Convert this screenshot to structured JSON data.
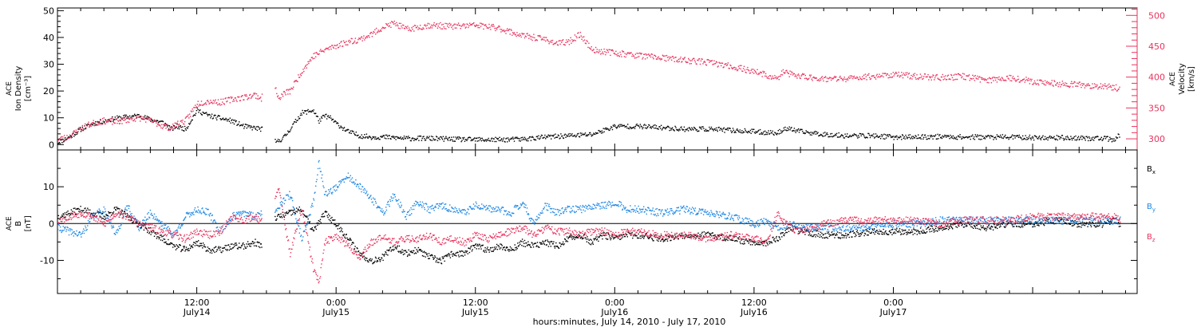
{
  "chart_data": [
    {
      "type": "scatter",
      "panel": "plasma",
      "ylabel_left": [
        "ACE",
        "Ion Density",
        "[cm⁻³]"
      ],
      "ylabel_right": [
        "ACE",
        "Velocity",
        "[km/s]"
      ],
      "yticks_left": [
        "0",
        "10",
        "20",
        "30",
        "40",
        "50"
      ],
      "yticks_right": [
        "300",
        "350",
        "400",
        "450",
        "500"
      ],
      "ylim_left": [
        -2,
        51
      ],
      "ylim_right": [
        282,
        512
      ],
      "series": [
        {
          "color": "#000000",
          "axis": "left",
          "x": [
            0,
            0.5,
            1,
            2,
            3,
            4,
            5,
            6,
            7,
            8,
            9,
            9.8,
            10.2,
            11,
            12,
            13,
            14,
            15,
            16,
            17.5,
            18,
            18.8,
            19.5,
            20,
            21,
            22,
            22.5,
            23,
            23.5,
            24,
            25,
            26,
            27,
            28,
            30,
            32,
            34,
            36,
            38,
            40,
            42,
            44,
            46,
            48,
            50,
            52,
            54,
            56,
            58,
            60,
            62,
            62.5,
            63,
            64,
            66,
            68,
            70,
            72,
            74,
            76,
            78,
            80,
            82,
            84,
            86,
            88,
            90,
            91,
            91.5
          ],
          "values": [
            1,
            2,
            3,
            6,
            8,
            9,
            10,
            10.5,
            11,
            9.5,
            8.5,
            6,
            7,
            6,
            13,
            11,
            10,
            9,
            7,
            6,
            5,
            1,
            3,
            6,
            12,
            13,
            9,
            11,
            10,
            8,
            5,
            3.5,
            3,
            3,
            2.5,
            2.5,
            2.2,
            2,
            2,
            2.2,
            3,
            3.5,
            4,
            7,
            7,
            6.5,
            6,
            6,
            5.5,
            5,
            4.5,
            6,
            6,
            5,
            4,
            3.5,
            3.5,
            3,
            3,
            3.2,
            3,
            3,
            3,
            2.8,
            2.8,
            2.6,
            2.5,
            2,
            4
          ]
        },
        {
          "color": "#e8345e",
          "axis": "right",
          "x": [
            0,
            0.5,
            1,
            2,
            3,
            4,
            5,
            6,
            7,
            8,
            9,
            9.8,
            10.2,
            11,
            12,
            13,
            14,
            15,
            16,
            17,
            17.5,
            18,
            18.8,
            19,
            19.5,
            20,
            21,
            22,
            23,
            24,
            25,
            26,
            27,
            28,
            29,
            30,
            32,
            34,
            36,
            38,
            40,
            42,
            43,
            44,
            45,
            46,
            48,
            50,
            52,
            54,
            56,
            58,
            60,
            62,
            62.5,
            63,
            64,
            66,
            68,
            70,
            72,
            74,
            76,
            78,
            80,
            82,
            84,
            86,
            88,
            90,
            91,
            91.5
          ],
          "values": [
            300,
            302,
            305,
            318,
            326,
            330,
            328,
            332,
            335,
            330,
            322,
            318,
            325,
            330,
            358,
            362,
            360,
            365,
            368,
            372,
            366,
            380,
            382,
            364,
            375,
            378,
            410,
            435,
            445,
            452,
            458,
            462,
            470,
            482,
            488,
            478,
            485,
            483,
            485,
            480,
            468,
            462,
            455,
            458,
            470,
            445,
            440,
            436,
            432,
            428,
            425,
            418,
            410,
            398,
            410,
            406,
            402,
            398,
            398,
            402,
            405,
            402,
            400,
            402,
            396,
            400,
            394,
            390,
            388,
            386,
            384,
            382
          ]
        }
      ]
    },
    {
      "type": "scatter",
      "panel": "magnetic_field",
      "ylabel_left": [
        "ACE",
        "B",
        "[nT]"
      ],
      "yticks_left": [
        "-10",
        "0",
        "10"
      ],
      "ylim": [
        -19,
        20
      ],
      "legend": [
        {
          "label": "B",
          "sub": "x",
          "color": "#000000"
        },
        {
          "label": "B",
          "sub": "y",
          "color": "#1e88e5"
        },
        {
          "label": "B",
          "sub": "z",
          "color": "#e8345e"
        }
      ],
      "series": [
        {
          "color": "#000000",
          "x": [
            0,
            1,
            2,
            3,
            4,
            5,
            6,
            7,
            8,
            9,
            10,
            11,
            12,
            13,
            14,
            15,
            16,
            17,
            17.5,
            18,
            19,
            20,
            21,
            22,
            23,
            24,
            25,
            26,
            27,
            28,
            29,
            30,
            31,
            32,
            33,
            34,
            35,
            36,
            37,
            38,
            39,
            40,
            41,
            42,
            43,
            44,
            45,
            46,
            47,
            48,
            49,
            50,
            52,
            54,
            56,
            58,
            60,
            61,
            62,
            63,
            64,
            66,
            68,
            70,
            72,
            74,
            76,
            78,
            80,
            82,
            84,
            86,
            88,
            90,
            91,
            91.5
          ],
          "values": [
            2,
            3,
            4,
            3,
            2,
            4,
            2,
            0,
            -2,
            -4,
            -6,
            -7,
            -5,
            -7,
            -7,
            -6,
            -6,
            -5,
            -6,
            0,
            2,
            3,
            4,
            -2,
            3,
            0,
            -4,
            -8,
            -10,
            -9,
            -6,
            -8,
            -7,
            -9,
            -10,
            -8,
            -8,
            -6,
            -7,
            -6,
            -7,
            -5,
            -6,
            -5,
            -6,
            -4,
            -3,
            -5,
            -3,
            -4,
            -3,
            -3,
            -4,
            -3,
            -3,
            -4,
            -5,
            -5,
            -4,
            -1,
            -2,
            -3,
            -3,
            -2,
            -2,
            -2,
            -1,
            0,
            -1,
            0,
            0,
            1,
            0,
            0,
            1,
            0
          ]
        },
        {
          "color": "#1e88e5",
          "x": [
            0,
            1,
            2,
            3,
            4,
            5,
            6,
            7,
            8,
            9,
            10,
            11,
            12,
            13,
            14,
            15,
            16,
            17,
            17.5,
            18,
            19,
            20,
            21,
            22,
            22.5,
            23,
            24,
            25,
            26,
            27,
            28,
            29,
            30,
            31,
            32,
            33,
            34,
            35,
            36,
            37,
            38,
            39,
            40,
            41,
            42,
            43,
            44,
            45,
            46,
            47,
            48,
            49,
            50,
            52,
            54,
            56,
            58,
            60,
            61,
            62,
            63,
            64,
            66,
            68,
            70,
            72,
            74,
            76,
            78,
            80,
            82,
            84,
            86,
            88,
            90,
            91,
            91.5
          ],
          "values": [
            -1,
            -2,
            -3,
            2,
            4,
            -3,
            5,
            -1,
            3,
            0,
            -3,
            2,
            4,
            3,
            -2,
            2,
            3,
            2,
            3,
            0,
            5,
            8,
            -4,
            6,
            17,
            8,
            10,
            13,
            10,
            7,
            3,
            8,
            2,
            6,
            4,
            5,
            4,
            3,
            5,
            4,
            4,
            3,
            6,
            0,
            5,
            3,
            4,
            4,
            5,
            5,
            6,
            4,
            4,
            3,
            4,
            3,
            2,
            0,
            1,
            -1,
            0,
            -1,
            -1,
            -1,
            -1,
            0,
            0,
            1,
            1,
            1,
            1,
            1,
            1,
            1,
            1,
            1,
            1
          ]
        },
        {
          "color": "#e8345e",
          "x": [
            0,
            1,
            2,
            3,
            4,
            5,
            6,
            7,
            8,
            9,
            10,
            11,
            12,
            13,
            14,
            15,
            16,
            17,
            17.5,
            18,
            19,
            20,
            21,
            22,
            22.5,
            23,
            24,
            25,
            26,
            27,
            28,
            29,
            30,
            31,
            32,
            33,
            34,
            35,
            36,
            37,
            38,
            39,
            40,
            41,
            42,
            43,
            44,
            45,
            46,
            47,
            48,
            49,
            50,
            52,
            54,
            56,
            58,
            60,
            61,
            62,
            63,
            64,
            66,
            68,
            70,
            72,
            74,
            76,
            78,
            80,
            82,
            84,
            86,
            88,
            90,
            91,
            91.5
          ],
          "values": [
            1,
            2,
            3,
            2,
            0,
            3,
            2,
            0,
            -1,
            -2,
            -3,
            -4,
            -2,
            -3,
            -2,
            2,
            1,
            2,
            1,
            -2,
            10,
            -8,
            4,
            -12,
            -16,
            -5,
            -3,
            -6,
            -9,
            -5,
            -3,
            -5,
            -4,
            -4,
            -3,
            -5,
            -4,
            -5,
            -3,
            -4,
            -3,
            -2,
            -1,
            -3,
            -1,
            -2,
            -2,
            -3,
            -2,
            -2,
            -3,
            -2,
            -2,
            -3,
            -3,
            -4,
            -3,
            -4,
            -5,
            3,
            -1,
            -2,
            0,
            1,
            1,
            1,
            1,
            0,
            1,
            1,
            1,
            2,
            2,
            2,
            2,
            2,
            1
          ]
        }
      ]
    }
  ],
  "x_axis": {
    "xlim_hours": [
      0,
      93
    ],
    "ticks": [
      {
        "hour": 12,
        "line1": "12:00",
        "line2": "July14"
      },
      {
        "hour": 24,
        "line1": "0:00",
        "line2": "July15"
      },
      {
        "hour": 36,
        "line1": "12:00",
        "line2": "July15"
      },
      {
        "hour": 48,
        "line1": "0:00",
        "line2": "July16"
      },
      {
        "hour": 60,
        "line1": "12:00",
        "line2": "July16"
      },
      {
        "hour": 72,
        "line1": "0:00",
        "line2": "July17"
      }
    ],
    "xlabel": "hours:minutes, July 14, 2010 - July 17, 2010"
  }
}
